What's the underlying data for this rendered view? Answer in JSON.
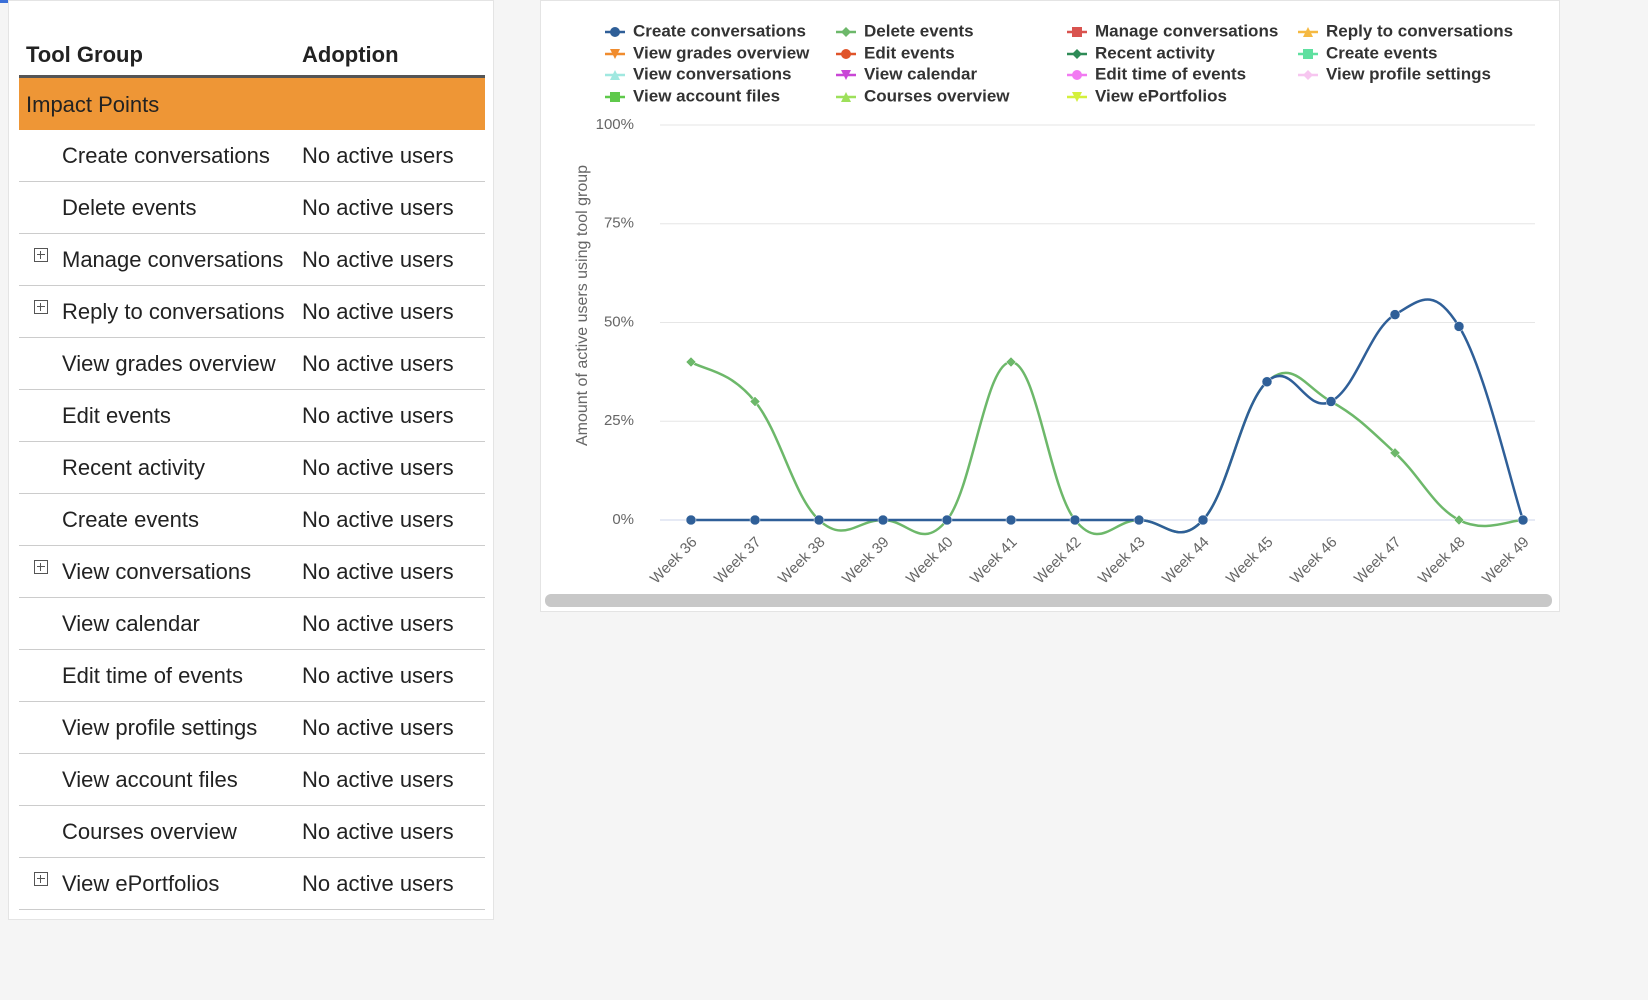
{
  "table": {
    "headers": [
      "Tool Group",
      "Adoption"
    ],
    "group": "Impact Points",
    "rows": [
      {
        "name": "Create conversations",
        "adoption": "No active users",
        "expandable": false
      },
      {
        "name": "Delete events",
        "adoption": "No active users",
        "expandable": false
      },
      {
        "name": "Manage conversations",
        "adoption": "No active users",
        "expandable": true
      },
      {
        "name": "Reply to conversations",
        "adoption": "No active users",
        "expandable": true
      },
      {
        "name": "View grades overview",
        "adoption": "No active users",
        "expandable": false
      },
      {
        "name": "Edit events",
        "adoption": "No active users",
        "expandable": false
      },
      {
        "name": "Recent activity",
        "adoption": "No active users",
        "expandable": false
      },
      {
        "name": "Create events",
        "adoption": "No active users",
        "expandable": false
      },
      {
        "name": "View conversations",
        "adoption": "No active users",
        "expandable": true
      },
      {
        "name": "View calendar",
        "adoption": "No active users",
        "expandable": false
      },
      {
        "name": "Edit time of events",
        "adoption": "No active users",
        "expandable": false
      },
      {
        "name": "View profile settings",
        "adoption": "No active users",
        "expandable": false
      },
      {
        "name": "View account files",
        "adoption": "No active users",
        "expandable": false
      },
      {
        "name": "Courses overview",
        "adoption": "No active users",
        "expandable": false
      },
      {
        "name": "View ePortfolios",
        "adoption": "No active users",
        "expandable": true
      }
    ]
  },
  "chart_data": {
    "type": "line",
    "y_label": "Amount of active users using tool group",
    "categories": [
      "Week 36",
      "Week 37",
      "Week 38",
      "Week 39",
      "Week 40",
      "Week 41",
      "Week 42",
      "Week 43",
      "Week 44",
      "Week 45",
      "Week 46",
      "Week 47",
      "Week 48",
      "Week 49"
    ],
    "ylim": [
      0,
      100
    ],
    "yticks": [
      {
        "value": 0,
        "label": "0%"
      },
      {
        "value": 25,
        "label": "25%"
      },
      {
        "value": 50,
        "label": "50%"
      },
      {
        "value": 75,
        "label": "75%"
      },
      {
        "value": 100,
        "label": "100%"
      }
    ],
    "grid": true,
    "series": [
      {
        "name": "Create conversations",
        "color": "#2f5f98",
        "symbol": "circle",
        "values": [
          0,
          0,
          0,
          0,
          0,
          0,
          0,
          0,
          0,
          35,
          30,
          52,
          49,
          0
        ]
      },
      {
        "name": "Delete events",
        "color": "#6db86a",
        "symbol": "diamond",
        "values": [
          40,
          30,
          0,
          0,
          0,
          40,
          0,
          0,
          0,
          35,
          30,
          17,
          0,
          0
        ]
      },
      {
        "name": "Manage conversations",
        "color": "#d9534f",
        "symbol": "square",
        "values": [
          null,
          null,
          null,
          null,
          null,
          null,
          null,
          null,
          null,
          null,
          null,
          null,
          null,
          null
        ]
      },
      {
        "name": "Reply to conversations",
        "color": "#f5b942",
        "symbol": "triangle",
        "values": [
          null,
          null,
          null,
          null,
          null,
          null,
          null,
          null,
          null,
          null,
          null,
          null,
          null,
          null
        ]
      },
      {
        "name": "View grades overview",
        "color": "#f08c2e",
        "symbol": "triangle-down",
        "values": [
          null,
          null,
          null,
          null,
          null,
          null,
          null,
          null,
          null,
          null,
          null,
          null,
          null,
          null
        ]
      },
      {
        "name": "Edit events",
        "color": "#e0542a",
        "symbol": "circle",
        "values": [
          null,
          null,
          null,
          null,
          null,
          null,
          null,
          null,
          null,
          null,
          null,
          null,
          null,
          null
        ]
      },
      {
        "name": "Recent activity",
        "color": "#2e8b57",
        "symbol": "diamond",
        "values": [
          null,
          null,
          null,
          null,
          null,
          null,
          null,
          null,
          null,
          null,
          null,
          null,
          null,
          null
        ]
      },
      {
        "name": "Create events",
        "color": "#5fe0a0",
        "symbol": "square",
        "values": [
          null,
          null,
          null,
          null,
          null,
          null,
          null,
          null,
          null,
          null,
          null,
          null,
          null,
          null
        ]
      },
      {
        "name": "View conversations",
        "color": "#a0e8e0",
        "symbol": "triangle",
        "values": [
          null,
          null,
          null,
          null,
          null,
          null,
          null,
          null,
          null,
          null,
          null,
          null,
          null,
          null
        ]
      },
      {
        "name": "View calendar",
        "color": "#c946d6",
        "symbol": "triangle-down",
        "values": [
          null,
          null,
          null,
          null,
          null,
          null,
          null,
          null,
          null,
          null,
          null,
          null,
          null,
          null
        ]
      },
      {
        "name": "Edit time of events",
        "color": "#f27af2",
        "symbol": "circle",
        "values": [
          null,
          null,
          null,
          null,
          null,
          null,
          null,
          null,
          null,
          null,
          null,
          null,
          null,
          null
        ]
      },
      {
        "name": "View profile settings",
        "color": "#f7c6f0",
        "symbol": "diamond",
        "values": [
          null,
          null,
          null,
          null,
          null,
          null,
          null,
          null,
          null,
          null,
          null,
          null,
          null,
          null
        ]
      },
      {
        "name": "View account files",
        "color": "#5fc94b",
        "symbol": "square",
        "values": [
          null,
          null,
          null,
          null,
          null,
          null,
          null,
          null,
          null,
          null,
          null,
          null,
          null,
          null
        ]
      },
      {
        "name": "Courses overview",
        "color": "#9de05a",
        "symbol": "triangle",
        "values": [
          null,
          null,
          null,
          null,
          null,
          null,
          null,
          null,
          null,
          null,
          null,
          null,
          null,
          null
        ]
      },
      {
        "name": "View ePortfolios",
        "color": "#d4f03c",
        "symbol": "triangle-down",
        "values": [
          null,
          null,
          null,
          null,
          null,
          null,
          null,
          null,
          null,
          null,
          null,
          null,
          null,
          null
        ]
      }
    ]
  }
}
